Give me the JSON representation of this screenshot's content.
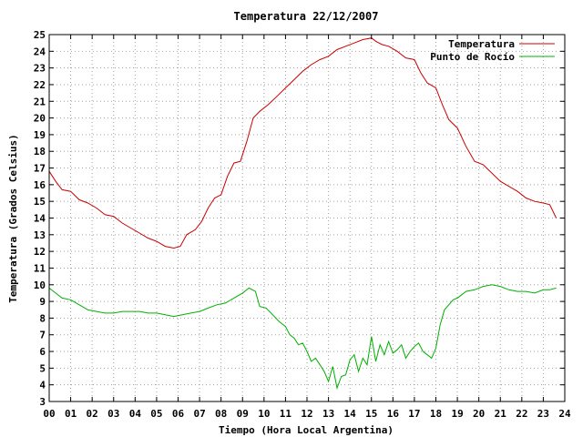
{
  "chart_data": {
    "type": "line",
    "title": "Temperatura 22/12/2007",
    "xlabel": "Tiempo (Hora Local Argentina)",
    "ylabel": "Temperatura (Grados Celsius)",
    "xlim": [
      0,
      24
    ],
    "ylim": [
      3,
      25
    ],
    "xticks": [
      0,
      1,
      2,
      3,
      4,
      5,
      6,
      7,
      8,
      9,
      10,
      11,
      12,
      13,
      14,
      15,
      16,
      17,
      18,
      19,
      20,
      21,
      22,
      23,
      24
    ],
    "xtick_labels": [
      "00",
      "01",
      "02",
      "03",
      "04",
      "05",
      "06",
      "07",
      "08",
      "09",
      "10",
      "11",
      "12",
      "13",
      "14",
      "15",
      "16",
      "17",
      "18",
      "19",
      "20",
      "21",
      "22",
      "23",
      "24"
    ],
    "yticks": [
      3,
      4,
      5,
      6,
      7,
      8,
      9,
      10,
      11,
      12,
      13,
      14,
      15,
      16,
      17,
      18,
      19,
      20,
      21,
      22,
      23,
      24,
      25
    ],
    "grid": true,
    "legend_position": "top-right",
    "series": [
      {
        "name": "Temperatura",
        "color": "#cc0000",
        "x": [
          0.0,
          0.3,
          0.6,
          1.0,
          1.4,
          1.8,
          2.2,
          2.6,
          3.0,
          3.4,
          3.8,
          4.2,
          4.6,
          5.0,
          5.4,
          5.8,
          6.1,
          6.4,
          6.8,
          7.1,
          7.4,
          7.7,
          8.0,
          8.3,
          8.6,
          8.9,
          9.2,
          9.5,
          9.8,
          10.2,
          10.6,
          11.0,
          11.4,
          11.8,
          12.2,
          12.6,
          13.0,
          13.4,
          13.8,
          14.2,
          14.6,
          15.0,
          15.2,
          15.5,
          15.8,
          16.2,
          16.6,
          17.0,
          17.3,
          17.6,
          18.0,
          18.3,
          18.6,
          19.0,
          19.4,
          19.8,
          20.2,
          20.6,
          21.0,
          21.4,
          21.8,
          22.2,
          22.6,
          23.0,
          23.3,
          23.6
        ],
        "values": [
          16.8,
          16.2,
          15.7,
          15.6,
          15.1,
          14.9,
          14.6,
          14.2,
          14.1,
          13.7,
          13.4,
          13.1,
          12.8,
          12.6,
          12.3,
          12.2,
          12.3,
          13.0,
          13.3,
          13.8,
          14.6,
          15.2,
          15.4,
          16.5,
          17.3,
          17.4,
          18.6,
          20.0,
          20.4,
          20.8,
          21.3,
          21.8,
          22.3,
          22.8,
          23.2,
          23.5,
          23.7,
          24.1,
          24.3,
          24.5,
          24.7,
          24.8,
          24.6,
          24.4,
          24.3,
          24.0,
          23.6,
          23.5,
          22.7,
          22.1,
          21.8,
          20.8,
          19.9,
          19.4,
          18.3,
          17.4,
          17.2,
          16.7,
          16.2,
          15.9,
          15.6,
          15.2,
          15.0,
          14.9,
          14.8,
          14.0
        ]
      },
      {
        "name": "Punto de Rocío",
        "color": "#00b000",
        "x": [
          0.0,
          0.3,
          0.6,
          1.0,
          1.4,
          1.8,
          2.2,
          2.6,
          3.0,
          3.4,
          3.8,
          4.2,
          4.6,
          5.0,
          5.4,
          5.8,
          6.2,
          6.6,
          7.0,
          7.4,
          7.8,
          8.2,
          8.6,
          9.0,
          9.3,
          9.6,
          9.8,
          10.1,
          10.4,
          10.7,
          11.0,
          11.2,
          11.4,
          11.6,
          11.8,
          12.0,
          12.2,
          12.4,
          12.6,
          12.8,
          13.0,
          13.2,
          13.4,
          13.6,
          13.8,
          14.0,
          14.2,
          14.4,
          14.6,
          14.8,
          15.0,
          15.2,
          15.4,
          15.6,
          15.8,
          16.0,
          16.2,
          16.4,
          16.6,
          16.8,
          17.0,
          17.2,
          17.4,
          17.6,
          17.8,
          18.0,
          18.2,
          18.4,
          18.6,
          18.8,
          19.0,
          19.2,
          19.4,
          19.8,
          20.2,
          20.6,
          21.0,
          21.4,
          21.8,
          22.2,
          22.6,
          23.0,
          23.3,
          23.6
        ],
        "values": [
          9.8,
          9.5,
          9.2,
          9.1,
          8.8,
          8.5,
          8.4,
          8.3,
          8.3,
          8.4,
          8.4,
          8.4,
          8.3,
          8.3,
          8.2,
          8.1,
          8.2,
          8.3,
          8.4,
          8.6,
          8.8,
          8.9,
          9.2,
          9.5,
          9.8,
          9.6,
          8.7,
          8.6,
          8.2,
          7.8,
          7.5,
          7.0,
          6.8,
          6.4,
          6.5,
          6.0,
          5.4,
          5.6,
          5.2,
          4.8,
          4.2,
          5.1,
          3.8,
          4.5,
          4.6,
          5.5,
          5.8,
          4.8,
          5.6,
          5.2,
          6.9,
          5.4,
          6.4,
          5.8,
          6.6,
          5.9,
          6.1,
          6.4,
          5.6,
          6.0,
          6.3,
          6.5,
          6.0,
          5.8,
          5.6,
          6.2,
          7.6,
          8.5,
          8.8,
          9.1,
          9.2,
          9.4,
          9.6,
          9.7,
          9.9,
          10.0,
          9.9,
          9.7,
          9.6,
          9.6,
          9.5,
          9.7,
          9.7,
          9.8
        ]
      }
    ]
  }
}
